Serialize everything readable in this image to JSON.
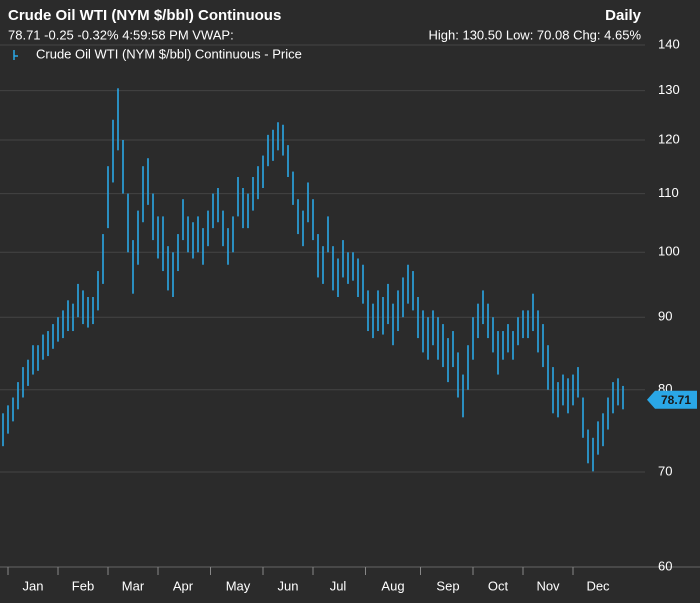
{
  "chart_data": {
    "type": "ohlc",
    "title": "Crude Oil WTI (NYM $/bbl) Continuous",
    "period": "Daily",
    "quote": "78.71 -0.25 -0.32% 4:59:58 PM VWAP:",
    "stats": "High: 130.50 Low: 70.08 Chg: 4.65%",
    "legend": "Crude Oil WTI (NYM $/bbl) Continuous - Price",
    "color": "#2aa7e6",
    "last_price": 78.71,
    "log_scale": true,
    "grid": true,
    "ylim": [
      60,
      140
    ],
    "yticks": [
      60,
      70,
      80,
      90,
      100,
      110,
      120,
      130,
      140
    ],
    "categories": [
      null,
      null,
      null,
      null,
      null,
      null,
      "Jan",
      null,
      null,
      null,
      null,
      null,
      null,
      null,
      null,
      null,
      "Feb",
      null,
      null,
      null,
      null,
      null,
      null,
      null,
      null,
      null,
      "Mar",
      null,
      null,
      null,
      null,
      null,
      null,
      null,
      null,
      null,
      "Apr",
      null,
      null,
      null,
      null,
      null,
      null,
      null,
      null,
      null,
      null,
      "May",
      null,
      null,
      null,
      null,
      null,
      null,
      null,
      null,
      null,
      "Jun",
      null,
      null,
      null,
      null,
      null,
      null,
      null,
      null,
      null,
      "Jul",
      null,
      null,
      null,
      null,
      null,
      null,
      null,
      null,
      null,
      null,
      "Aug",
      null,
      null,
      null,
      null,
      null,
      null,
      null,
      null,
      null,
      null,
      "Sep",
      null,
      null,
      null,
      null,
      null,
      null,
      null,
      null,
      null,
      "Oct",
      null,
      null,
      null,
      null,
      null,
      null,
      null,
      null,
      null,
      "Nov",
      null,
      null,
      null,
      null,
      null,
      null,
      null,
      null,
      null,
      "Dec",
      null,
      null,
      null,
      null,
      null
    ],
    "high": [
      77,
      78,
      79,
      81,
      83,
      84,
      86,
      86,
      87.5,
      88,
      89,
      90,
      91,
      92.5,
      92,
      95,
      94,
      93,
      93,
      97,
      103,
      115,
      124,
      130.5,
      120,
      110,
      102,
      107,
      115,
      116.5,
      110,
      106,
      106,
      101,
      100,
      103,
      109,
      106,
      105,
      106,
      104,
      107,
      110,
      111,
      107,
      104,
      106,
      113,
      111,
      110,
      113,
      115,
      117,
      121,
      122,
      123.5,
      123,
      119,
      114,
      109,
      107,
      112,
      109,
      103,
      101,
      106,
      101,
      99,
      102,
      100,
      100,
      99,
      98,
      94,
      92,
      94,
      93,
      95,
      92,
      94,
      96,
      98,
      97,
      93,
      91,
      90,
      91,
      90,
      89,
      87,
      88,
      85,
      82,
      86,
      90,
      92,
      94,
      92,
      90,
      88,
      88,
      89,
      88,
      90,
      91,
      91,
      93.5,
      91,
      89,
      86,
      83,
      81,
      82,
      81.5,
      82,
      83,
      79,
      75,
      74,
      76,
      77,
      79,
      81,
      81.5,
      80.5
    ],
    "low": [
      73,
      74.5,
      76,
      77.5,
      79,
      80.5,
      82,
      82.5,
      84,
      84.5,
      85.5,
      86.5,
      87,
      88,
      88,
      90,
      89,
      88.5,
      89,
      91,
      95,
      104,
      112,
      118,
      110,
      100,
      93.5,
      98,
      105,
      108,
      102,
      99,
      97,
      94,
      93,
      97,
      102,
      100,
      99,
      100,
      98,
      101,
      104,
      105,
      101,
      98,
      100,
      106,
      104,
      104,
      107,
      109,
      111,
      115,
      116,
      118,
      117,
      113,
      108,
      103,
      101,
      105,
      102,
      96,
      95,
      100,
      94,
      93,
      96,
      95,
      95.5,
      93,
      92,
      88,
      87,
      88,
      87.5,
      89,
      86,
      88,
      90,
      92,
      91,
      87,
      85,
      84,
      86,
      84,
      83,
      81,
      83,
      79,
      76.5,
      80,
      84,
      87,
      89,
      87,
      85,
      82,
      84,
      85,
      84,
      86,
      87,
      87,
      88,
      85,
      83,
      80,
      77,
      76.5,
      78,
      77,
      78,
      79,
      74,
      71,
      70.08,
      72,
      73,
      75,
      77,
      78,
      77.5
    ]
  }
}
